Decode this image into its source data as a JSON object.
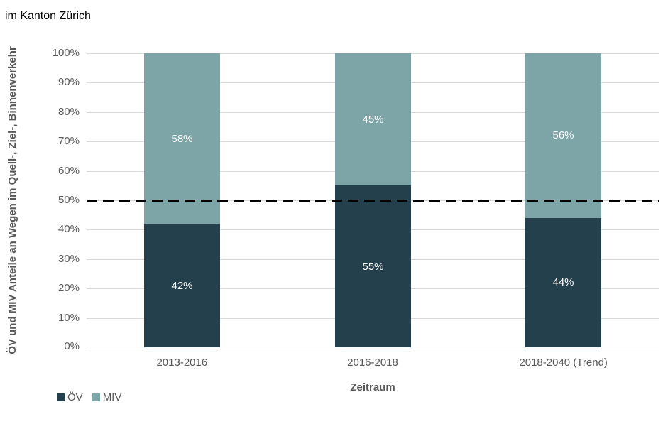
{
  "title": "im Kanton Zürich",
  "chart_data": {
    "type": "bar",
    "stacked": true,
    "categories": [
      "2013-2016",
      "2016-2018",
      "2018-2040 (Trend)"
    ],
    "series": [
      {
        "name": "ÖV",
        "color": "#25404d",
        "values": [
          42,
          55,
          44
        ]
      },
      {
        "name": "MIV",
        "color": "#7da5a8",
        "values": [
          58,
          45,
          56
        ]
      }
    ],
    "value_label_suffix": "%",
    "value_label_color": "#ffffff",
    "xlabel": "Zeitraum",
    "ylabel": "ÖV und MIV Anteile an Wegen im Quell-, Ziel-, Binnenverkehr",
    "ylim": [
      0,
      100
    ],
    "ytick_step": 10,
    "ytick_suffix": "%",
    "grid": true,
    "gridline_color": "#d9d9d9",
    "axis_text_color": "#595959",
    "reference_line": {
      "value": 50,
      "style": "dashed",
      "color": "#000000"
    },
    "legend_position": "bottom-left"
  }
}
